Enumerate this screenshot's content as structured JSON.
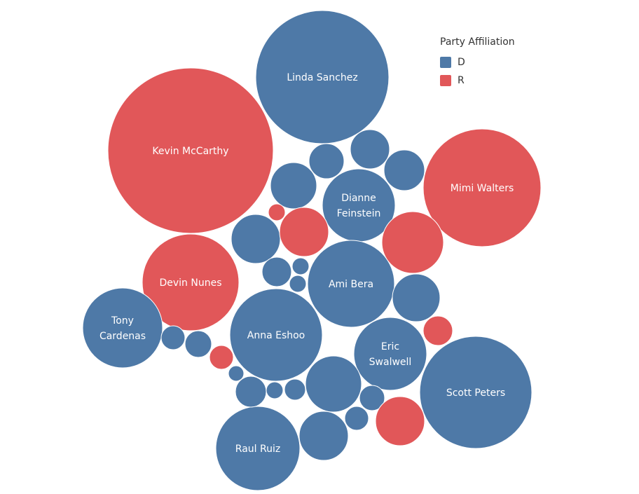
{
  "chart_data": {
    "type": "bubble",
    "legend": {
      "title": "Party Affiliation",
      "placement": "top-right",
      "entries": [
        {
          "key": "D",
          "label": "D",
          "color": "#4e79a7"
        },
        {
          "key": "R",
          "label": "R",
          "color": "#e15759"
        }
      ]
    },
    "bubbles": [
      {
        "name": "Linda Sanchez",
        "party": "D",
        "label_lines": [
          "Linda Sanchez"
        ]
      },
      {
        "name": "Kevin McCarthy",
        "party": "R",
        "label_lines": [
          "Kevin McCarthy"
        ]
      },
      {
        "name": "Mimi Walters",
        "party": "R",
        "label_lines": [
          "Mimi Walters"
        ]
      },
      {
        "name": "Dianne Feinstein",
        "party": "D",
        "label_lines": [
          "Dianne",
          "Feinstein"
        ]
      },
      {
        "name": "Devin Nunes",
        "party": "R",
        "label_lines": [
          "Devin Nunes"
        ]
      },
      {
        "name": "Ami Bera",
        "party": "D",
        "label_lines": [
          "Ami Bera"
        ]
      },
      {
        "name": "Tony Cardenas",
        "party": "D",
        "label_lines": [
          "Tony",
          "Cardenas"
        ]
      },
      {
        "name": "Anna Eshoo",
        "party": "D",
        "label_lines": [
          "Anna Eshoo"
        ]
      },
      {
        "name": "Eric Swalwell",
        "party": "D",
        "label_lines": [
          "Eric",
          "Swalwell"
        ]
      },
      {
        "name": "Scott Peters",
        "party": "D",
        "label_lines": [
          "Scott Peters"
        ]
      },
      {
        "name": "Raul Ruiz",
        "party": "D",
        "label_lines": [
          "Raul Ruiz"
        ]
      },
      {
        "name": "",
        "party": "D",
        "label_lines": []
      },
      {
        "name": "",
        "party": "D",
        "label_lines": []
      },
      {
        "name": "",
        "party": "D",
        "label_lines": []
      },
      {
        "name": "",
        "party": "D",
        "label_lines": []
      },
      {
        "name": "",
        "party": "R",
        "label_lines": []
      },
      {
        "name": "",
        "party": "D",
        "label_lines": []
      },
      {
        "name": "",
        "party": "R",
        "label_lines": []
      },
      {
        "name": "",
        "party": "R",
        "label_lines": []
      },
      {
        "name": "",
        "party": "D",
        "label_lines": []
      },
      {
        "name": "",
        "party": "D",
        "label_lines": []
      },
      {
        "name": "",
        "party": "D",
        "label_lines": []
      },
      {
        "name": "",
        "party": "D",
        "label_lines": []
      },
      {
        "name": "",
        "party": "R",
        "label_lines": []
      },
      {
        "name": "",
        "party": "D",
        "label_lines": []
      },
      {
        "name": "",
        "party": "D",
        "label_lines": []
      },
      {
        "name": "",
        "party": "R",
        "label_lines": []
      },
      {
        "name": "",
        "party": "D",
        "label_lines": []
      },
      {
        "name": "",
        "party": "D",
        "label_lines": []
      },
      {
        "name": "",
        "party": "D",
        "label_lines": []
      },
      {
        "name": "",
        "party": "D",
        "label_lines": []
      },
      {
        "name": "",
        "party": "D",
        "label_lines": []
      },
      {
        "name": "",
        "party": "D",
        "label_lines": []
      },
      {
        "name": "",
        "party": "D",
        "label_lines": []
      },
      {
        "name": "",
        "party": "D",
        "label_lines": []
      },
      {
        "name": "",
        "party": "R",
        "label_lines": []
      },
      {
        "name": "",
        "party": "D",
        "label_lines": []
      }
    ]
  }
}
